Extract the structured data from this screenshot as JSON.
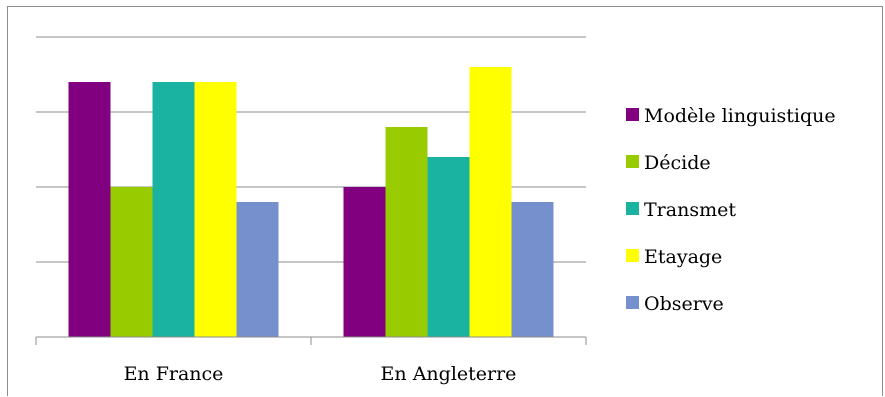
{
  "chart_data": {
    "type": "bar",
    "categories": [
      "En France",
      "En Angleterre"
    ],
    "series": [
      {
        "name": "Modèle linguistique",
        "color": "#800080",
        "values": [
          3.4,
          2.0
        ]
      },
      {
        "name": "Décide",
        "color": "#99cc00",
        "values": [
          2.0,
          2.8
        ]
      },
      {
        "name": "Transmet",
        "color": "#1ab3a2",
        "values": [
          3.4,
          2.4
        ]
      },
      {
        "name": "Etayage",
        "color": "#ffff00",
        "values": [
          3.4,
          3.6
        ]
      },
      {
        "name": "Observe",
        "color": "#7590cc",
        "values": [
          1.8,
          1.8
        ]
      }
    ],
    "ylim": [
      0,
      4
    ],
    "grid": true,
    "legend_position": "right"
  }
}
